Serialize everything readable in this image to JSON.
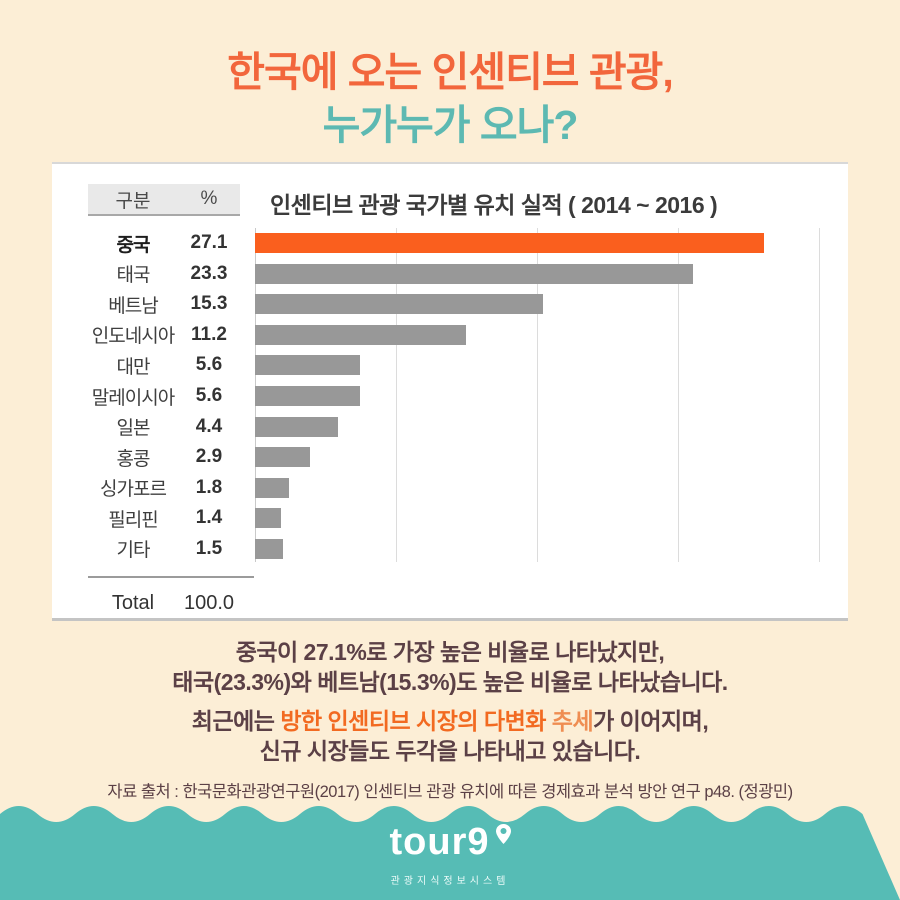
{
  "header": {
    "title_line1": "한국에 오는 인센티브 관광,",
    "title_line2": "누가누가 오나?"
  },
  "chart_panel": {
    "table_header_col1": "구분",
    "table_header_col2": "%",
    "chart_title": "인센티브 관광 국가별 유치 실적 ( 2014 ~ 2016 )",
    "total_label": "Total",
    "total_value": "100.0"
  },
  "chart_data": {
    "type": "bar",
    "orientation": "horizontal",
    "title": "인센티브 관광 국가별 유치 실적 ( 2014 ~ 2016 )",
    "categories": [
      "중국",
      "태국",
      "베트남",
      "인도네시아",
      "대만",
      "말레이시아",
      "일본",
      "홍콩",
      "싱가포르",
      "필리핀",
      "기타"
    ],
    "values": [
      27.1,
      23.3,
      15.3,
      11.2,
      5.6,
      5.6,
      4.4,
      2.9,
      1.8,
      1.4,
      1.5
    ],
    "total": 100.0,
    "xlabel": "",
    "ylabel": "",
    "xlim": [
      0,
      30
    ],
    "gridline_step": 7.5,
    "grid": true,
    "legend": false,
    "highlight_index": 0,
    "highlight_color": "#fa5f1e",
    "bar_color": "#989898"
  },
  "commentary": {
    "line1_bold": "중국이 27.1%",
    "line1_rest": "로 가장 높은 비율로 나타났지만,",
    "line2": "태국(23.3%)와 베트남(15.3%)도 높은 비율로 나타났습니다.",
    "line3_pre": "최근에는 ",
    "line3_orange_bold": "방한 인센티브 시장의 다변화",
    "line3_orange_light": " 추세",
    "line3_post": "가 이어지며,",
    "line4": "신규 시장들도 두각을 나타내고 있습니다.",
    "source": "자료 출처 : 한국문화관광연구원(2017) 인센티브 관광 유치에 따른 경제효과 분석 방안 연구 p48. (정광민)"
  },
  "footer": {
    "logo_text": "tour9",
    "logo_subtext": "관광지식정보시스템"
  },
  "colors": {
    "background_cream": "#fceed6",
    "footer_teal": "#56bcb5",
    "title_orange": "#f2663c",
    "title_teal": "#5db9b2",
    "bar_orange": "#fa5f1e",
    "bar_gray": "#989898",
    "text_dark_plum": "#5b4046",
    "emphasis_orange": "#f26a21"
  }
}
